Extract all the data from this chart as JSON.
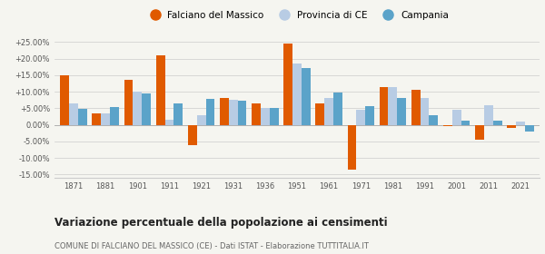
{
  "years": [
    1871,
    1881,
    1901,
    1911,
    1921,
    1931,
    1936,
    1951,
    1961,
    1971,
    1981,
    1991,
    2001,
    2011,
    2021
  ],
  "falciano": [
    15.0,
    3.5,
    13.5,
    21.0,
    -6.2,
    8.0,
    6.5,
    24.5,
    6.5,
    -13.5,
    11.5,
    10.5,
    -0.5,
    -4.5,
    -1.0
  ],
  "provincia": [
    6.5,
    3.5,
    10.0,
    1.5,
    3.0,
    7.5,
    5.0,
    18.5,
    8.0,
    4.5,
    11.5,
    8.0,
    4.5,
    6.0,
    1.0
  ],
  "campania": [
    4.8,
    5.5,
    9.5,
    6.5,
    7.8,
    7.2,
    5.2,
    17.2,
    9.8,
    5.8,
    8.0,
    3.0,
    1.2,
    1.2,
    -2.0
  ],
  "color_falciano": "#e05a00",
  "color_provincia": "#b8cce4",
  "color_campania": "#5ba3c9",
  "title": "Variazione percentuale della popolazione ai censimenti",
  "subtitle": "COMUNE DI FALCIANO DEL MASSICO (CE) - Dati ISTAT - Elaborazione TUTTITALIA.IT",
  "legend_labels": [
    "Falciano del Massico",
    "Provincia di CE",
    "Campania"
  ],
  "ylim": [
    -16,
    27
  ],
  "yticks": [
    -15,
    -10,
    -5,
    0,
    5,
    10,
    15,
    20,
    25
  ],
  "ytick_labels": [
    "-15.00%",
    "-10.00%",
    "-5.00%",
    "0.00%",
    "+5.00%",
    "+10.00%",
    "+15.00%",
    "+20.00%",
    "+25.00%"
  ],
  "background_color": "#f5f5f0",
  "bar_width": 0.28
}
